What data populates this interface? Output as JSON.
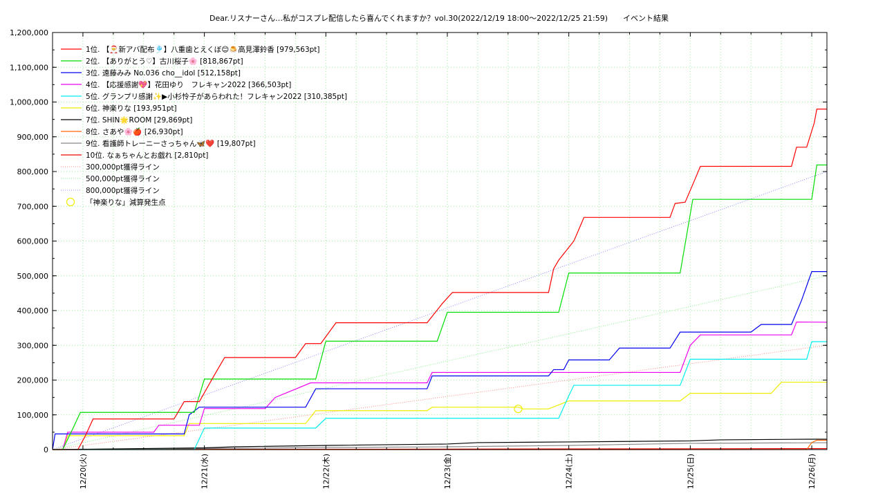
{
  "chart_data": {
    "type": "line",
    "title": "Dear.リスナーさん…私がコスプレ配信したら喜んでくれますか？vol.30(2022/12/19 18:00～2022/12/25 21:59)　　イベント結果",
    "xlabel": "",
    "ylabel": "",
    "ylim": [
      0,
      1200000
    ],
    "xlim": [
      "2022-12-19 18:00",
      "2022-12-25 21:59"
    ],
    "y_ticks": [
      "1,200,000",
      "1,100,000",
      "1,000,000",
      "900,000",
      "800,000",
      "700,000",
      "600,000",
      "500,000",
      "400,000",
      "300,000",
      "200,000",
      "100,000",
      "0"
    ],
    "x_ticks": [
      "12/20(火)",
      "12/21(水)",
      "12/22(木)",
      "12/23(金)",
      "12/24(土)",
      "12/25(日)",
      "12/26(月)"
    ],
    "grid": true,
    "legend_position": "top-left",
    "series": [
      {
        "name": "1位. 【🎅新アバ配布🎐】八重歯とえくぼ😊🍮高見澤鈴香 [979,563pt]",
        "color": "#ff0000",
        "points": [
          [
            "2022-12-19 18:00",
            0
          ],
          [
            "2022-12-19 23:00",
            0
          ],
          [
            "2022-12-20 00:30",
            40000
          ],
          [
            "2022-12-20 02:00",
            88000
          ],
          [
            "2022-12-20 18:00",
            88000
          ],
          [
            "2022-12-20 20:00",
            138000
          ],
          [
            "2022-12-20 23:00",
            138000
          ],
          [
            "2022-12-21 02:00",
            215000
          ],
          [
            "2022-12-21 04:00",
            265000
          ],
          [
            "2022-12-21 18:00",
            265000
          ],
          [
            "2022-12-21 20:00",
            305000
          ],
          [
            "2022-12-21 23:00",
            305000
          ],
          [
            "2022-12-22 02:00",
            365000
          ],
          [
            "2022-12-22 20:00",
            365000
          ],
          [
            "2022-12-22 23:00",
            420000
          ],
          [
            "2022-12-23 01:00",
            452000
          ],
          [
            "2022-12-23 20:00",
            452000
          ],
          [
            "2022-12-23 21:00",
            520000
          ],
          [
            "2022-12-23 22:00",
            545000
          ],
          [
            "2022-12-24 01:00",
            600000
          ],
          [
            "2022-12-24 03:00",
            668000
          ],
          [
            "2022-12-24 20:00",
            668000
          ],
          [
            "2022-12-24 21:00",
            708000
          ],
          [
            "2022-12-24 23:00",
            712000
          ],
          [
            "2022-12-25 01:00",
            780000
          ],
          [
            "2022-12-25 02:00",
            815000
          ],
          [
            "2022-12-25 20:00",
            815000
          ],
          [
            "2022-12-25 21:00",
            870000
          ],
          [
            "2022-12-25 23:00",
            870000
          ],
          [
            "2022-12-26 00:30",
            940000
          ],
          [
            "2022-12-26 01:00",
            979563
          ],
          [
            "2022-12-26 03:00",
            979563
          ]
        ]
      },
      {
        "name": "2位. 【ありがとう♡】古川桜子🌸 [818,867pt]",
        "color": "#00dd00",
        "points": [
          [
            "2022-12-19 18:00",
            0
          ],
          [
            "2022-12-19 20:00",
            0
          ],
          [
            "2022-12-19 22:00",
            60000
          ],
          [
            "2022-12-19 23:30",
            107000
          ],
          [
            "2022-12-20 22:00",
            107000
          ],
          [
            "2022-12-21 00:00",
            203000
          ],
          [
            "2022-12-21 22:00",
            203000
          ],
          [
            "2022-12-22 00:00",
            312000
          ],
          [
            "2022-12-22 22:00",
            312000
          ],
          [
            "2022-12-23 00:00",
            395000
          ],
          [
            "2022-12-23 22:00",
            395000
          ],
          [
            "2022-12-24 00:00",
            508000
          ],
          [
            "2022-12-24 22:00",
            508000
          ],
          [
            "2022-12-25 00:30",
            720000
          ],
          [
            "2022-12-26 00:00",
            720000
          ],
          [
            "2022-12-26 01:00",
            818867
          ],
          [
            "2022-12-26 03:00",
            818867
          ]
        ]
      },
      {
        "name": "3位. 遠藤みみ No.036 cho__idol [512,158pt]",
        "color": "#0000ee",
        "points": [
          [
            "2022-12-19 18:00",
            0
          ],
          [
            "2022-12-19 18:30",
            45000
          ],
          [
            "2022-12-20 20:00",
            45000
          ],
          [
            "2022-12-20 21:00",
            100000
          ],
          [
            "2022-12-20 23:00",
            122000
          ],
          [
            "2022-12-21 20:00",
            122000
          ],
          [
            "2022-12-21 22:00",
            175000
          ],
          [
            "2022-12-22 20:00",
            175000
          ],
          [
            "2022-12-22 21:00",
            212000
          ],
          [
            "2022-12-23 20:00",
            212000
          ],
          [
            "2022-12-23 21:00",
            230000
          ],
          [
            "2022-12-23 23:00",
            230000
          ],
          [
            "2022-12-24 00:00",
            258000
          ],
          [
            "2022-12-24 08:00",
            258000
          ],
          [
            "2022-12-24 10:00",
            292000
          ],
          [
            "2022-12-24 20:00",
            292000
          ],
          [
            "2022-12-24 22:00",
            338000
          ],
          [
            "2022-12-25 12:00",
            338000
          ],
          [
            "2022-12-25 14:00",
            360000
          ],
          [
            "2022-12-25 20:00",
            360000
          ],
          [
            "2022-12-25 22:00",
            430000
          ],
          [
            "2022-12-26 00:00",
            512158
          ],
          [
            "2022-12-26 03:00",
            512158
          ]
        ]
      },
      {
        "name": "4位. 【応援感謝💖】花田ゆり　フレキャン2022 [366,503pt]",
        "color": "#ee00ee",
        "points": [
          [
            "2022-12-19 18:00",
            0
          ],
          [
            "2022-12-19 20:00",
            0
          ],
          [
            "2022-12-19 21:00",
            50000
          ],
          [
            "2022-12-20 14:00",
            50000
          ],
          [
            "2022-12-20 15:00",
            70000
          ],
          [
            "2022-12-20 23:00",
            70000
          ],
          [
            "2022-12-21 00:00",
            118000
          ],
          [
            "2022-12-21 12:00",
            118000
          ],
          [
            "2022-12-21 14:00",
            150000
          ],
          [
            "2022-12-21 21:00",
            192000
          ],
          [
            "2022-12-22 20:00",
            192000
          ],
          [
            "2022-12-22 21:00",
            222000
          ],
          [
            "2022-12-24 22:00",
            222000
          ],
          [
            "2022-12-25 00:00",
            300000
          ],
          [
            "2022-12-25 02:00",
            330000
          ],
          [
            "2022-12-25 20:00",
            330000
          ],
          [
            "2022-12-25 21:00",
            367000
          ],
          [
            "2022-12-26 03:00",
            366503
          ]
        ]
      },
      {
        "name": "5位. グランプリ感謝✨▶小杉怜子があらわれた！フレキャン2022 [310,385pt]",
        "color": "#00eeee",
        "points": [
          [
            "2022-12-19 18:00",
            0
          ],
          [
            "2022-12-20 22:00",
            0
          ],
          [
            "2022-12-21 00:00",
            62000
          ],
          [
            "2022-12-21 22:00",
            62000
          ],
          [
            "2022-12-22 00:00",
            90000
          ],
          [
            "2022-12-23 22:00",
            90000
          ],
          [
            "2022-12-24 00:00",
            155000
          ],
          [
            "2022-12-24 01:00",
            185000
          ],
          [
            "2022-12-24 22:00",
            185000
          ],
          [
            "2022-12-25 00:00",
            260000
          ],
          [
            "2022-12-25 23:00",
            260000
          ],
          [
            "2022-12-26 00:00",
            310385
          ],
          [
            "2022-12-26 03:00",
            310385
          ]
        ]
      },
      {
        "name": "6位. 神楽りな [193,951pt]",
        "color": "#eeee00",
        "points": [
          [
            "2022-12-19 18:00",
            0
          ],
          [
            "2022-12-19 20:00",
            0
          ],
          [
            "2022-12-19 21:00",
            40000
          ],
          [
            "2022-12-20 20:00",
            40000
          ],
          [
            "2022-12-20 21:00",
            75000
          ],
          [
            "2022-12-21 20:00",
            75000
          ],
          [
            "2022-12-21 22:00",
            112000
          ],
          [
            "2022-12-22 20:00",
            112000
          ],
          [
            "2022-12-22 21:00",
            122000
          ],
          [
            "2022-12-23 14:00",
            122000
          ],
          [
            "2022-12-23 15:00",
            117000
          ],
          [
            "2022-12-23 20:00",
            117000
          ],
          [
            "2022-12-24 00:00",
            140000
          ],
          [
            "2022-12-24 22:00",
            140000
          ],
          [
            "2022-12-25 00:00",
            162000
          ],
          [
            "2022-12-25 16:00",
            162000
          ],
          [
            "2022-12-25 18:00",
            193951
          ],
          [
            "2022-12-26 03:00",
            193951
          ]
        ]
      },
      {
        "name": "7位. SHIN🌟ROOM [29,869pt]",
        "color": "#000000",
        "points": [
          [
            "2022-12-19 18:00",
            0
          ],
          [
            "2022-12-20 00:00",
            1000
          ],
          [
            "2022-12-21 00:00",
            5000
          ],
          [
            "2022-12-21 06:00",
            8000
          ],
          [
            "2022-12-22 00:00",
            12000
          ],
          [
            "2022-12-23 00:00",
            16000
          ],
          [
            "2022-12-23 06:00",
            20000
          ],
          [
            "2022-12-24 00:00",
            22000
          ],
          [
            "2022-12-25 00:00",
            25000
          ],
          [
            "2022-12-25 06:00",
            28000
          ],
          [
            "2022-12-26 00:00",
            29869
          ],
          [
            "2022-12-26 03:00",
            29869
          ]
        ]
      },
      {
        "name": "8位. さあや🌸🍎 [26,930pt]",
        "color": "#ff6600",
        "points": [
          [
            "2022-12-19 18:00",
            0
          ],
          [
            "2022-12-25 23:00",
            0
          ],
          [
            "2022-12-26 00:00",
            20000
          ],
          [
            "2022-12-26 01:00",
            26930
          ],
          [
            "2022-12-26 03:00",
            26930
          ]
        ]
      },
      {
        "name": "9位. 看護師トレーニーさっちゃん🦋❤️ [19,807pt]",
        "color": "#888888",
        "points": [
          [
            "2022-12-19 18:00",
            0
          ],
          [
            "2022-12-21 00:00",
            3000
          ],
          [
            "2022-12-22 00:00",
            6000
          ],
          [
            "2022-12-23 00:00",
            8000
          ],
          [
            "2022-12-24 00:00",
            12000
          ],
          [
            "2022-12-25 00:00",
            18000
          ],
          [
            "2022-12-26 03:00",
            19807
          ]
        ]
      },
      {
        "name": "10位. なぁちゃんとお戯れ [2,810pt]",
        "color": "#ee0000",
        "points": [
          [
            "2022-12-19 18:00",
            0
          ],
          [
            "2022-12-26 03:00",
            2810
          ]
        ]
      }
    ],
    "reference_lines": [
      {
        "name": "300,000pt獲得ライン",
        "color": "#ff8888",
        "points": [
          [
            "2022-12-19 18:00",
            0
          ],
          [
            "2022-12-26 03:00",
            300000
          ]
        ]
      },
      {
        "name": "500,000pt獲得ライン",
        "color": "#88ee88",
        "points": [
          [
            "2022-12-19 18:00",
            0
          ],
          [
            "2022-12-26 03:00",
            500000
          ]
        ]
      },
      {
        "name": "800,000pt獲得ライン",
        "color": "#8888ff",
        "points": [
          [
            "2022-12-19 18:00",
            0
          ],
          [
            "2022-12-26 03:00",
            800000
          ]
        ]
      }
    ],
    "markers": [
      {
        "name": "「神楽りな」減算発生点",
        "color": "#eeee00",
        "x": "2022-12-23 14:00",
        "y": 117000
      }
    ]
  }
}
